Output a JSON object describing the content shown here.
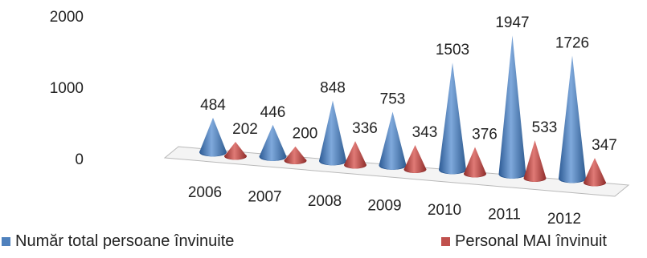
{
  "chart_data": {
    "type": "bar",
    "style": "3d-cone",
    "categories": [
      "2006",
      "2007",
      "2008",
      "2009",
      "2010",
      "2011",
      "2012"
    ],
    "series": [
      {
        "name": "Număr total persoane învinuite",
        "color": "#4f81bd",
        "values": [
          484,
          446,
          848,
          753,
          1503,
          1947,
          1726
        ]
      },
      {
        "name": "Personal MAI învinuit",
        "color": "#c0504d",
        "values": [
          202,
          200,
          336,
          343,
          376,
          533,
          347
        ]
      }
    ],
    "yticks": [
      "0",
      "1000",
      "2000"
    ],
    "ylim": [
      0,
      2000
    ],
    "legend_position": "bottom",
    "grid": false
  }
}
